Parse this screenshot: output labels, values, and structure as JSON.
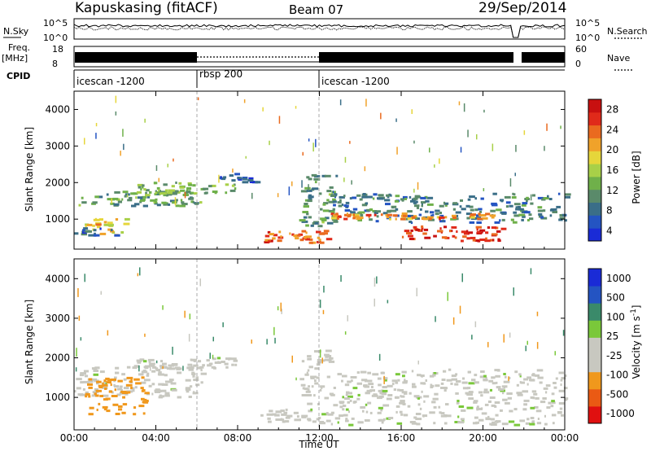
{
  "header": {
    "station": "Kapuskasing (fitACF)",
    "beam": "Beam 07",
    "date": "29/Sep/2014"
  },
  "top_panels": {
    "nsky_label": "N.Sky",
    "nsky_ticks": [
      "10^5",
      "10^0"
    ],
    "nsearch_label": "N.Search",
    "nsearch_ticks": [
      "10^5",
      "10^0"
    ],
    "freq_label": "Freq.",
    "freq_unit": "[MHz]",
    "freq_ticks": [
      "18",
      "8"
    ],
    "nave_label": "Nave",
    "nave_ticks": [
      "60",
      "0"
    ],
    "cpid_label": "CPID",
    "cpid_segments": [
      {
        "name": "icescan -1200",
        "start": 0,
        "end": 6
      },
      {
        "name": "rbsp 200",
        "start": 6,
        "end": 12
      },
      {
        "name": "icescan -1200",
        "start": 12,
        "end": 24
      }
    ]
  },
  "colors": {
    "power": [
      "#1a2bd6",
      "#2454c2",
      "#3a6e88",
      "#5a8a6a",
      "#6fb04a",
      "#a8d048",
      "#e6d63a",
      "#f0a22a",
      "#ea6a1f",
      "#e02a1a",
      "#c81010"
    ],
    "velocity": [
      "#e01010",
      "#ea5a14",
      "#f0981c",
      "#c8c8c0",
      "#c8c8c0",
      "#7ac83a",
      "#3a8a6a",
      "#2454c2",
      "#1a2bd6"
    ]
  },
  "chart_data": [
    {
      "type": "heatmap",
      "panel": "power",
      "xlabel": "Time UT",
      "ylabel": "Slant Range [km]",
      "xlim": [
        0,
        24
      ],
      "ylim": [
        180,
        4500
      ],
      "x_ticks": [
        "00:00",
        "04:00",
        "08:00",
        "12:00",
        "16:00",
        "20:00",
        "00:00"
      ],
      "y_ticks": [
        1000,
        2000,
        3000,
        4000
      ],
      "colorbar_label": "Power [dB]",
      "colorbar_range": [
        0,
        30
      ],
      "colorbar_ticks": [
        "28",
        "24",
        "20",
        "16",
        "12",
        "8",
        "4"
      ],
      "regions": [
        {
          "t0": 0.0,
          "t1": 6.2,
          "r0": 1350,
          "r1": 1750,
          "value": 10
        },
        {
          "t0": 0.5,
          "t1": 2.5,
          "r0": 550,
          "r1": 1000,
          "value": 18
        },
        {
          "t0": 0.0,
          "t1": 2.0,
          "r0": 550,
          "r1": 750,
          "value": 6
        },
        {
          "t0": 3.0,
          "t1": 8.0,
          "r0": 1700,
          "r1": 2000,
          "value": 12
        },
        {
          "t0": 7.0,
          "t1": 9.0,
          "r0": 2000,
          "r1": 2250,
          "value": 4
        },
        {
          "t0": 9.0,
          "t1": 12.4,
          "r0": 350,
          "r1": 700,
          "value": 24
        },
        {
          "t0": 11.0,
          "t1": 12.8,
          "r0": 800,
          "r1": 2200,
          "value": 10
        },
        {
          "t0": 12.5,
          "t1": 24.0,
          "r0": 900,
          "r1": 1700,
          "value": 8
        },
        {
          "t0": 12.5,
          "t1": 20.5,
          "r0": 1000,
          "r1": 1150,
          "value": 22
        },
        {
          "t0": 16.0,
          "t1": 21.0,
          "r0": 400,
          "r1": 800,
          "value": 26
        }
      ]
    },
    {
      "type": "heatmap",
      "panel": "velocity",
      "xlabel": "Time UT",
      "ylabel": "Slant Range [km]",
      "xlim": [
        0,
        24
      ],
      "ylim": [
        180,
        4500
      ],
      "x_ticks": [
        "00:00",
        "04:00",
        "08:00",
        "12:00",
        "16:00",
        "20:00",
        "00:00"
      ],
      "y_ticks": [
        1000,
        2000,
        3000,
        4000
      ],
      "colorbar_label": "Velocity [m s^-1]",
      "colorbar_ticks": [
        "1000",
        "500",
        "100",
        "25",
        "-25",
        "-100",
        "-500",
        "-1000"
      ],
      "regions": [
        {
          "t0": 0.0,
          "t1": 6.2,
          "r0": 1000,
          "r1": 1800,
          "value": 0
        },
        {
          "t0": 0.5,
          "t1": 3.5,
          "r0": 550,
          "r1": 1500,
          "value": -200
        },
        {
          "t0": 3.0,
          "t1": 8.0,
          "r0": 1700,
          "r1": 2000,
          "value": 0
        },
        {
          "t0": 9.0,
          "t1": 12.4,
          "r0": 350,
          "r1": 700,
          "value": 0
        },
        {
          "t0": 11.0,
          "t1": 12.5,
          "r0": 800,
          "r1": 2200,
          "value": -50
        },
        {
          "t0": 12.5,
          "t1": 24.0,
          "r0": 300,
          "r1": 1700,
          "value": 0
        }
      ]
    }
  ]
}
